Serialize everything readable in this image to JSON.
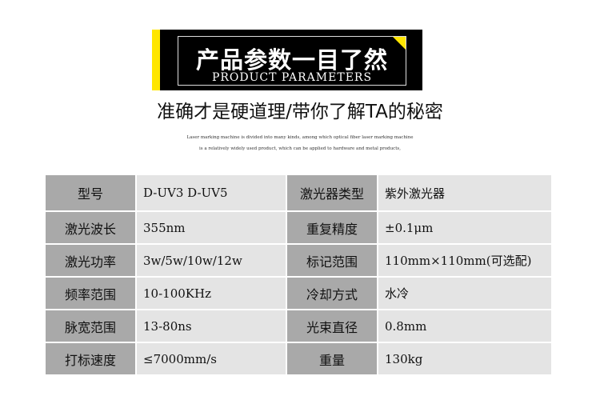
{
  "banner": {
    "title_cn": "产品参数一目了然",
    "title_en": "PRODUCT PARAMETERS"
  },
  "subtitle": "准确才是硬道理/带你了解TA的秘密",
  "description": [
    "Laser marking machine is divided into many kinds, among which optical fiber laser marking machine",
    "is a relatively widely used product, which can be applied to hardware and metal products,"
  ],
  "colors": {
    "accent": "#ffe600",
    "label_bg": "#a9a9a9",
    "value_bg": "#e4e4e4"
  },
  "params": [
    {
      "label1": "型号",
      "value1": "D-UV3  D-UV5",
      "label2": "激光器类型",
      "value2": "紫外激光器"
    },
    {
      "label1": "激光波长",
      "value1": "355nm",
      "label2": "重复精度",
      "value2": "±0.1μm"
    },
    {
      "label1": "激光功率",
      "value1": "3w/5w/10w/12w",
      "label2": "标记范围",
      "value2": "110mm×110mm(可选配)"
    },
    {
      "label1": "频率范围",
      "value1": "10-100KHz",
      "label2": "冷却方式",
      "value2": "水冷"
    },
    {
      "label1": "脉宽范围",
      "value1": "13-80ns",
      "label2": "光束直径",
      "value2": " 0.8mm"
    },
    {
      "label1": "打标速度",
      "value1": "≤7000mm/s",
      "label2": "重量",
      "value2": "130kg"
    }
  ]
}
